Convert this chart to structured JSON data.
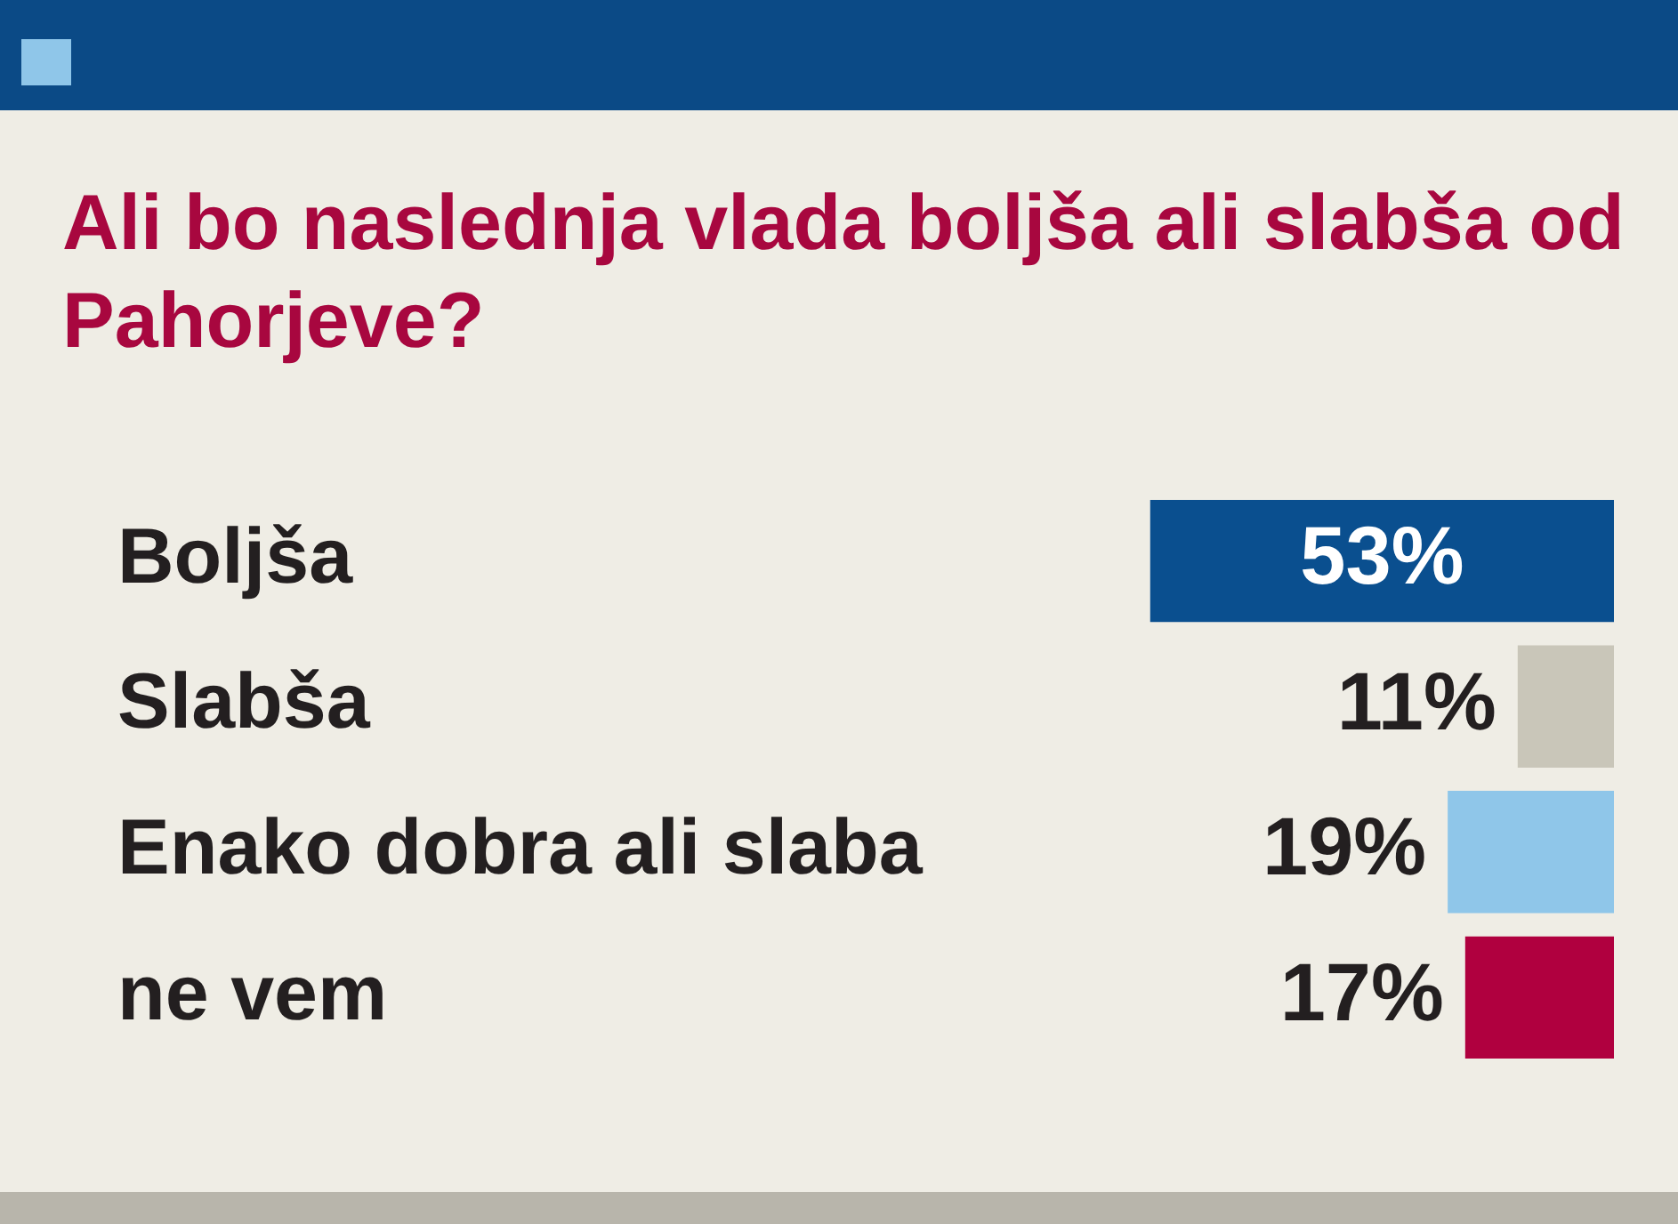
{
  "chart_data": {
    "type": "bar",
    "orientation": "horizontal",
    "title": "Ali bo naslednja vlada boljša ali slabša od Pahorjeve?",
    "categories": [
      "Boljša",
      "Slabša",
      "Enako dobra ali slaba",
      "ne vem"
    ],
    "values": [
      53,
      11,
      19,
      17
    ],
    "colors": [
      "#0a4f8f",
      "#c9c6b9",
      "#8fc6e9",
      "#b0003f"
    ],
    "value_labels": [
      "53%",
      "11%",
      "19%",
      "17%"
    ],
    "legend": false,
    "grid": false
  }
}
